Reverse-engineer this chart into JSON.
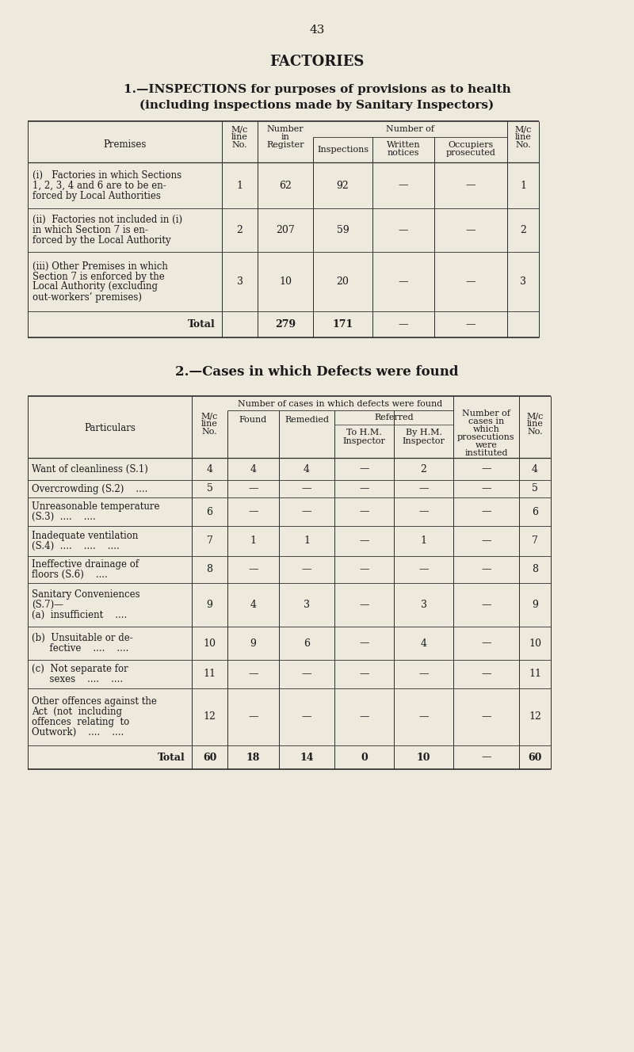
{
  "page_number": "43",
  "main_title": "FACTORIES",
  "section1_line1": "1.—INSPECTIONS for purposes of provisions as to health",
  "section1_line2": "(including inspections made by Sanitary Inspectors)",
  "section2_title": "2.—Cases in which Defects were found",
  "bg_color": "#ede9dc",
  "text_color": "#1a1a1a",
  "table1_rows": [
    {
      "label": [
        "(i)   Factories in which Sections",
        "1, 2, 3, 4 and 6 are to be en-",
        "forced by Local Authorities"
      ],
      "mc_line": "1",
      "register": "62",
      "inspections": "92",
      "written": "—",
      "occupiers": "—",
      "mc_line_r": "1",
      "is_total": false
    },
    {
      "label": [
        "(ii)  Factories not included in (i)",
        "in which Section 7 is en-",
        "forced by the Local Authority"
      ],
      "mc_line": "2",
      "register": "207",
      "inspections": "59",
      "written": "—",
      "occupiers": "—",
      "mc_line_r": "2",
      "is_total": false
    },
    {
      "label": [
        "(iii) Other Premises in which",
        "Section 7 is enforced by the",
        "Local Authority (excluding",
        "out-workers’ premises)"
      ],
      "mc_line": "3",
      "register": "10",
      "inspections": "20",
      "written": "—",
      "occupiers": "—",
      "mc_line_r": "3",
      "is_total": false
    },
    {
      "label": [
        "Total"
      ],
      "mc_line": "",
      "register": "279",
      "inspections": "171",
      "written": "—",
      "occupiers": "—",
      "mc_line_r": "",
      "is_total": true
    }
  ],
  "table2_rows": [
    {
      "label": [
        "Want of cleanliness (S.1)"
      ],
      "mc_line": "4",
      "found": "4",
      "remedied": "4",
      "to_hm": "—",
      "by_hm": "2",
      "prosecutions": "—",
      "mc_line_r": "4",
      "is_total": false
    },
    {
      "label": [
        "Overcrowding (S.2)    ...."
      ],
      "mc_line": "5",
      "found": "—",
      "remedied": "—",
      "to_hm": "—",
      "by_hm": "—",
      "prosecutions": "—",
      "mc_line_r": "5",
      "is_total": false
    },
    {
      "label": [
        "Unreasonable temperature",
        "(S.3)  ....    ...."
      ],
      "mc_line": "6",
      "found": "—",
      "remedied": "—",
      "to_hm": "—",
      "by_hm": "—",
      "prosecutions": "—",
      "mc_line_r": "6",
      "is_total": false
    },
    {
      "label": [
        "Inadequate ventilation",
        "(S.4)  ....    ....    ...."
      ],
      "mc_line": "7",
      "found": "1",
      "remedied": "1",
      "to_hm": "—",
      "by_hm": "1",
      "prosecutions": "—",
      "mc_line_r": "7",
      "is_total": false
    },
    {
      "label": [
        "Ineffective drainage of",
        "floors (S.6)    ...."
      ],
      "mc_line": "8",
      "found": "—",
      "remedied": "—",
      "to_hm": "—",
      "by_hm": "—",
      "prosecutions": "—",
      "mc_line_r": "8",
      "is_total": false
    },
    {
      "label": [
        "Sanitary Conveniences",
        "(S.7)—",
        "(a)  insufficient    ...."
      ],
      "mc_line": "9",
      "found": "4",
      "remedied": "3",
      "to_hm": "—",
      "by_hm": "3",
      "prosecutions": "—",
      "mc_line_r": "9",
      "is_total": false
    },
    {
      "label": [
        "(b)  Unsuitable or de-",
        "      fective    ....    ...."
      ],
      "mc_line": "10",
      "found": "9",
      "remedied": "6",
      "to_hm": "—",
      "by_hm": "4",
      "prosecutions": "—",
      "mc_line_r": "10",
      "is_total": false
    },
    {
      "label": [
        "(c)  Not separate for",
        "      sexes    ....    ...."
      ],
      "mc_line": "11",
      "found": "—",
      "remedied": "—",
      "to_hm": "—",
      "by_hm": "—",
      "prosecutions": "—",
      "mc_line_r": "11",
      "is_total": false
    },
    {
      "label": [
        "Other offences against the",
        "Act  (not  including",
        "offences  relating  to",
        "Outwork)    ....    ...."
      ],
      "mc_line": "12",
      "found": "—",
      "remedied": "—",
      "to_hm": "—",
      "by_hm": "—",
      "prosecutions": "—",
      "mc_line_r": "12",
      "is_total": false
    },
    {
      "label": [
        "Total"
      ],
      "mc_line": "60",
      "found": "18",
      "remedied": "14",
      "to_hm": "0",
      "by_hm": "10",
      "prosecutions": "—",
      "mc_line_r": "60",
      "is_total": true
    }
  ]
}
